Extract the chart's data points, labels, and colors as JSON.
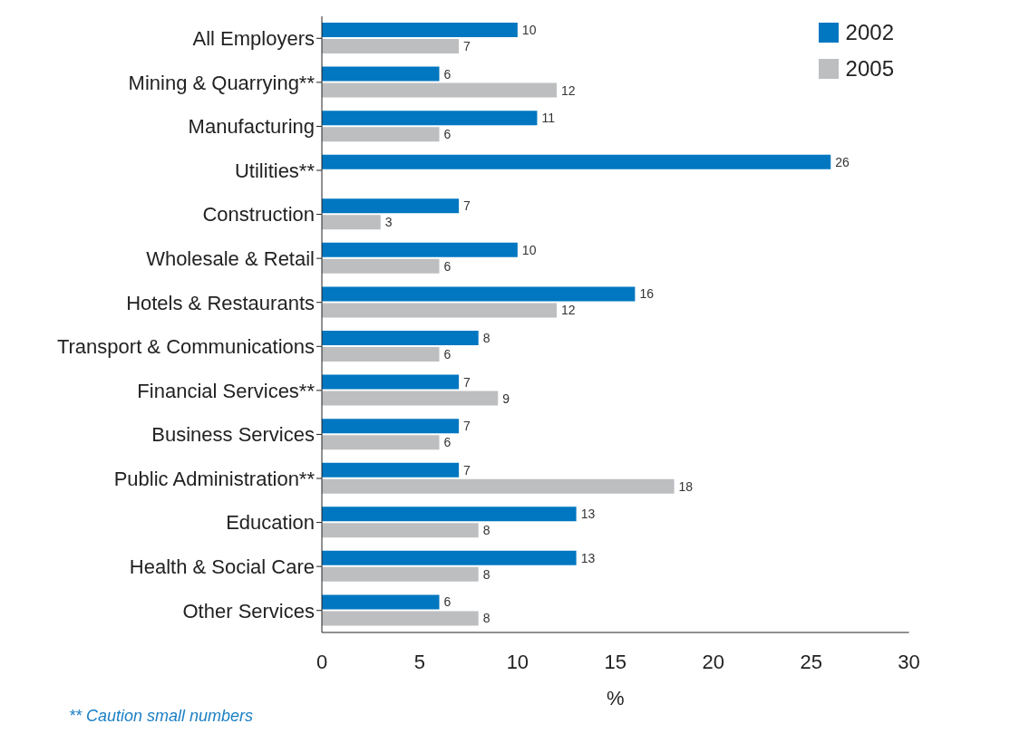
{
  "chart_data": {
    "type": "bar",
    "orientation": "horizontal",
    "categories": [
      "All Employers",
      "Mining & Quarrying**",
      "Manufacturing",
      "Utilities**",
      "Construction",
      "Wholesale & Retail",
      "Hotels & Restaurants",
      "Transport & Communications",
      "Financial Services**",
      "Business Services",
      "Public Administration**",
      "Education",
      "Health & Social Care",
      "Other Services"
    ],
    "series": [
      {
        "name": "2002",
        "color": "#0077c0",
        "values": [
          10,
          6,
          11,
          26,
          7,
          10,
          16,
          8,
          7,
          7,
          7,
          13,
          13,
          6
        ]
      },
      {
        "name": "2005",
        "color": "#bcbec0",
        "values": [
          7,
          12,
          6,
          null,
          3,
          6,
          12,
          6,
          9,
          6,
          18,
          8,
          8,
          8
        ]
      }
    ],
    "xlim": [
      0,
      30
    ],
    "xticks": [
      0,
      5,
      10,
      15,
      20,
      25,
      30
    ],
    "xlabel": "%",
    "data_labels": true,
    "legend": "top right",
    "grid": false,
    "annotations": [
      "** Caution small numbers"
    ]
  }
}
